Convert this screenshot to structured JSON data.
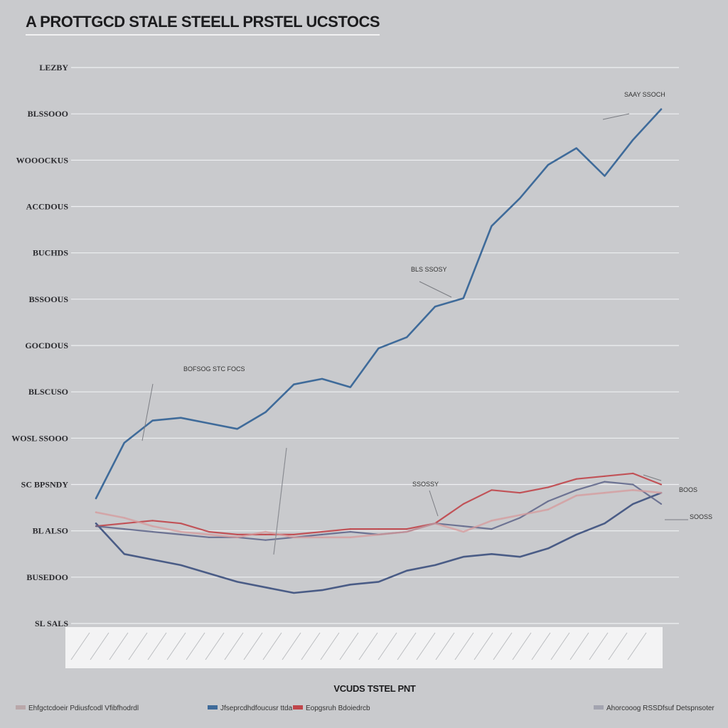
{
  "chart_data": {
    "type": "line",
    "title": "A PROTTGCD STALE STEELL PRSTEL UCSTOCS",
    "xlabel": "VCUDS TSTEL PNT",
    "ylabel": "",
    "y_tick_labels": [
      "LEZBY",
      "BLSSOOO",
      "WOOOCKUS",
      "ACCDOUS",
      "BUCHDS",
      "BSSOOUS",
      "GOCDOUS",
      "BLSCUSO",
      "WOSL SSOOO",
      "SC BPSNDY",
      "BL ALSO",
      "BUSEDOO",
      "SL SALS"
    ],
    "grid": true,
    "x": [
      0,
      1,
      2,
      3,
      4,
      5,
      6,
      7,
      8,
      9,
      10,
      11,
      12,
      13,
      14,
      15,
      16,
      17,
      18,
      19,
      20
    ],
    "series": [
      {
        "name": "",
        "color": "#3f6b9a",
        "values": [
          1.5,
          3.5,
          4.3,
          4.4,
          4.2,
          4.0,
          4.6,
          5.6,
          5.8,
          5.5,
          6.9,
          7.3,
          8.4,
          8.7,
          11.3,
          12.3,
          13.5,
          14.1,
          13.1,
          14.4,
          15.5
        ]
      },
      {
        "name": "",
        "color": "#4a5c86",
        "values": [
          0.6,
          -0.5,
          -0.7,
          -0.9,
          -1.2,
          -1.5,
          -1.7,
          -1.9,
          -1.8,
          -1.6,
          -1.5,
          -1.1,
          -0.9,
          -0.6,
          -0.5,
          -0.6,
          -0.3,
          0.2,
          0.6,
          1.3,
          1.7
        ]
      },
      {
        "name": "",
        "color": "#c0454a",
        "values": [
          0.5,
          0.6,
          0.7,
          0.6,
          0.3,
          0.2,
          0.2,
          0.2,
          0.3,
          0.4,
          0.4,
          0.4,
          0.6,
          1.3,
          1.8,
          1.7,
          1.9,
          2.2,
          2.3,
          2.4,
          2.0
        ]
      },
      {
        "name": "",
        "color": "#5d6488",
        "values": [
          0.5,
          0.4,
          0.3,
          0.2,
          0.1,
          0.1,
          0.0,
          0.1,
          0.2,
          0.3,
          0.2,
          0.3,
          0.6,
          0.5,
          0.4,
          0.8,
          1.4,
          1.8,
          2.1,
          2.0,
          1.3
        ]
      },
      {
        "name": "",
        "color": "#d5999b",
        "values": [
          1.0,
          0.8,
          0.5,
          0.3,
          0.2,
          0.1,
          0.3,
          0.1,
          0.1,
          0.1,
          0.2,
          0.3,
          0.6,
          0.3,
          0.7,
          0.9,
          1.1,
          1.6,
          1.7,
          1.8,
          1.7
        ]
      }
    ],
    "annotations": [
      "SAAY SSOCH",
      "BLS SSOSY",
      "BOFSOG STC FOCS",
      "SSOSSY",
      "BOOS",
      "SOOSS"
    ],
    "legend": [
      "Ehfgctcdoeir Pdiusfcodl Vfibfhodrdl",
      "Jfseprcdhdfoucusr ttda",
      "Eopgsruh Bdoiedrcb",
      "Ahorcooog RSSDfsuf Detspnsoter"
    ],
    "legend_colors": [
      "#b9a7a9",
      "#3f6b9a",
      "#c0454a",
      "#a3a4b0"
    ]
  }
}
